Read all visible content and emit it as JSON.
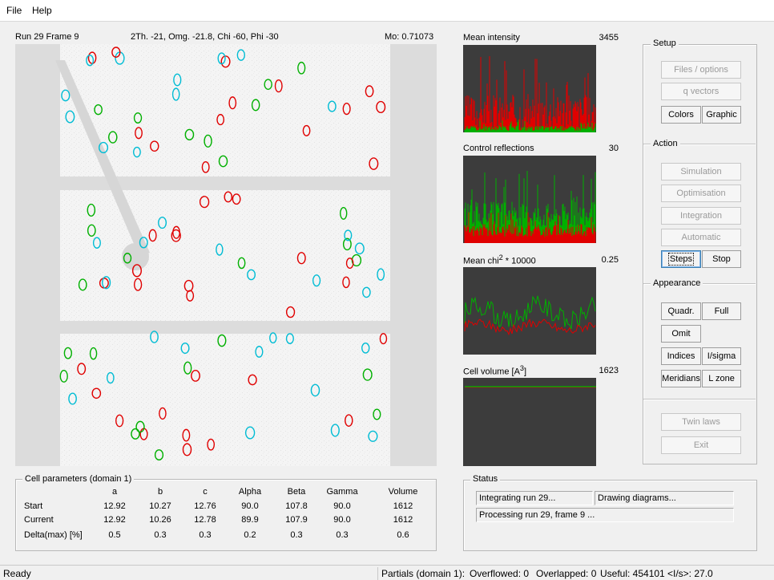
{
  "menu": {
    "file": "File",
    "help": "Help"
  },
  "frame_header": {
    "run_frame": "Run 29  Frame 9",
    "angles": "2Th. -21,  Omg. -21.8,  Chi -60,  Phi -30",
    "wavelength": "Mo:  0.71073"
  },
  "graphs": {
    "mean_intensity": {
      "title": "Mean intensity",
      "value": "3455"
    },
    "control_reflections": {
      "title": "Control reflections",
      "value": "30"
    },
    "mean_chi2": {
      "title_a": "Mean chi",
      "title_sup": "2",
      "title_b": " * 10000",
      "value": "0.25"
    },
    "cell_volume": {
      "title_a": "Cell volume [A",
      "title_sup": "3",
      "title_b": "]",
      "value": "1623"
    }
  },
  "colors": {
    "red_series": "#e00000",
    "green_series": "#00b000",
    "cyan_spot": "#00bcd4",
    "graph_bg": "#3c3c3c"
  },
  "setup": {
    "label": "Setup",
    "files_options": "Files / options",
    "q_vectors": "q vectors",
    "colors": "Colors",
    "graphic": "Graphic"
  },
  "action": {
    "label": "Action",
    "simulation": "Simulation",
    "optimisation": "Optimisation",
    "integration": "Integration",
    "automatic": "Automatic",
    "steps": "Steps",
    "stop": "Stop"
  },
  "appearance": {
    "label": "Appearance",
    "quadr": "Quadr.",
    "full": "Full",
    "omit": "Omit",
    "indices": "Indices",
    "i_sigma": "I/sigma",
    "meridians": "Meridians",
    "l_zone": "L zone"
  },
  "bottom_buttons": {
    "twin_laws": "Twin laws",
    "exit": "Exit"
  },
  "cell_params": {
    "label": "Cell parameters (domain 1)",
    "columns": [
      "a",
      "b",
      "c",
      "Alpha",
      "Beta",
      "Gamma",
      "Volume"
    ],
    "rows": [
      {
        "name": "Start",
        "values": [
          "12.92",
          "10.27",
          "12.76",
          "90.0",
          "107.8",
          "90.0",
          "1612"
        ]
      },
      {
        "name": "Current",
        "values": [
          "12.92",
          "10.26",
          "12.78",
          "89.9",
          "107.9",
          "90.0",
          "1612"
        ]
      },
      {
        "name": "Delta(max) [%]",
        "values": [
          "0.5",
          "0.3",
          "0.3",
          "0.2",
          "0.3",
          "0.3",
          "0.6"
        ]
      }
    ]
  },
  "status": {
    "label": "Status",
    "line1": "Integrating run 29...",
    "line1b": "Drawing diagrams...",
    "line2": "Processing run 29, frame 9 ..."
  },
  "statusbar": {
    "ready": "Ready",
    "partials": "Partials (domain 1):",
    "overflowed": "Overflowed: 0",
    "overlapped": "Overlapped: 0",
    "useful": "Useful: 454101",
    "i_s": "<I/s>: 27.0"
  }
}
